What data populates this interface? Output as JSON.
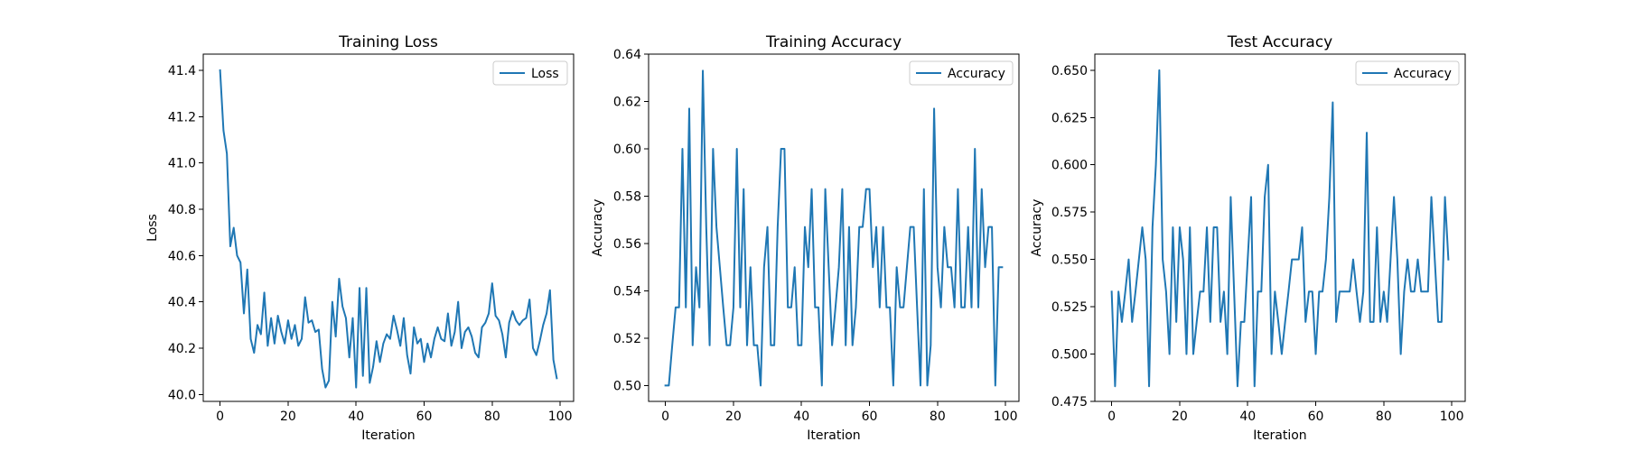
{
  "chart_data": [
    {
      "type": "line",
      "title": "Training Loss",
      "xlabel": "Iteration",
      "ylabel": "Loss",
      "xlim": [
        -4.95,
        103.95
      ],
      "ylim": [
        39.97,
        41.47
      ],
      "xticks": [
        0,
        20,
        40,
        60,
        80,
        100
      ],
      "yticks": [
        40.0,
        40.2,
        40.4,
        40.6,
        40.8,
        41.0,
        41.2,
        41.4
      ],
      "ytick_labels": [
        "40.0",
        "40.2",
        "40.4",
        "40.6",
        "40.8",
        "41.0",
        "41.2",
        "41.4"
      ],
      "grid": false,
      "legend": "top-right",
      "series": [
        {
          "name": "Loss",
          "color": "#1f77b4",
          "x": [
            0,
            1,
            2,
            3,
            4,
            5,
            6,
            7,
            8,
            9,
            10,
            11,
            12,
            13,
            14,
            15,
            16,
            17,
            18,
            19,
            20,
            21,
            22,
            23,
            24,
            25,
            26,
            27,
            28,
            29,
            30,
            31,
            32,
            33,
            34,
            35,
            36,
            37,
            38,
            39,
            40,
            41,
            42,
            43,
            44,
            45,
            46,
            47,
            48,
            49,
            50,
            51,
            52,
            53,
            54,
            55,
            56,
            57,
            58,
            59,
            60,
            61,
            62,
            63,
            64,
            65,
            66,
            67,
            68,
            69,
            70,
            71,
            72,
            73,
            74,
            75,
            76,
            77,
            78,
            79,
            80,
            81,
            82,
            83,
            84,
            85,
            86,
            87,
            88,
            89,
            90,
            91,
            92,
            93,
            94,
            95,
            96,
            97,
            98,
            99
          ],
          "values": [
            41.4,
            41.14,
            41.04,
            40.64,
            40.72,
            40.6,
            40.57,
            40.35,
            40.54,
            40.24,
            40.18,
            40.3,
            40.26,
            40.44,
            40.21,
            40.33,
            40.22,
            40.34,
            40.27,
            40.22,
            40.32,
            40.24,
            40.3,
            40.21,
            40.24,
            40.42,
            40.31,
            40.32,
            40.27,
            40.28,
            40.11,
            40.03,
            40.06,
            40.4,
            40.25,
            40.5,
            40.38,
            40.33,
            40.16,
            40.33,
            40.03,
            40.46,
            40.08,
            40.46,
            40.05,
            40.12,
            40.23,
            40.14,
            40.22,
            40.26,
            40.24,
            40.34,
            40.28,
            40.21,
            40.33,
            40.17,
            40.09,
            40.29,
            40.22,
            40.24,
            40.14,
            40.22,
            40.16,
            40.24,
            40.29,
            40.24,
            40.23,
            40.35,
            40.21,
            40.27,
            40.4,
            40.2,
            40.27,
            40.29,
            40.25,
            40.18,
            40.16,
            40.29,
            40.31,
            40.35,
            40.48,
            40.34,
            40.32,
            40.26,
            40.16,
            40.31,
            40.36,
            40.32,
            40.3,
            40.32,
            40.33,
            40.41,
            40.2,
            40.17,
            40.23,
            40.3,
            40.35,
            40.45,
            40.15,
            40.07
          ]
        }
      ]
    },
    {
      "type": "line",
      "title": "Training Accuracy",
      "xlabel": "Iteration",
      "ylabel": "Accuracy",
      "xlim": [
        -4.95,
        103.95
      ],
      "ylim": [
        0.4933,
        0.64
      ],
      "xticks": [
        0,
        20,
        40,
        60,
        80,
        100
      ],
      "yticks": [
        0.5,
        0.52,
        0.54,
        0.56,
        0.58,
        0.6,
        0.62,
        0.64
      ],
      "ytick_labels": [
        "0.50",
        "0.52",
        "0.54",
        "0.56",
        "0.58",
        "0.60",
        "0.62",
        "0.64"
      ],
      "grid": false,
      "legend": "top-right",
      "series": [
        {
          "name": "Accuracy",
          "color": "#1f77b4",
          "x": [
            0,
            1,
            2,
            3,
            4,
            5,
            6,
            7,
            8,
            9,
            10,
            11,
            12,
            13,
            14,
            15,
            16,
            17,
            18,
            19,
            20,
            21,
            22,
            23,
            24,
            25,
            26,
            27,
            28,
            29,
            30,
            31,
            32,
            33,
            34,
            35,
            36,
            37,
            38,
            39,
            40,
            41,
            42,
            43,
            44,
            45,
            46,
            47,
            48,
            49,
            50,
            51,
            52,
            53,
            54,
            55,
            56,
            57,
            58,
            59,
            60,
            61,
            62,
            63,
            64,
            65,
            66,
            67,
            68,
            69,
            70,
            71,
            72,
            73,
            74,
            75,
            76,
            77,
            78,
            79,
            80,
            81,
            82,
            83,
            84,
            85,
            86,
            87,
            88,
            89,
            90,
            91,
            92,
            93,
            94,
            95,
            96,
            97,
            98,
            99
          ],
          "values": [
            0.5,
            0.5,
            0.517,
            0.533,
            0.533,
            0.6,
            0.533,
            0.617,
            0.517,
            0.55,
            0.533,
            0.633,
            0.567,
            0.517,
            0.6,
            0.567,
            0.55,
            0.533,
            0.517,
            0.517,
            0.533,
            0.6,
            0.533,
            0.583,
            0.517,
            0.55,
            0.517,
            0.517,
            0.5,
            0.55,
            0.567,
            0.517,
            0.517,
            0.567,
            0.6,
            0.6,
            0.533,
            0.533,
            0.55,
            0.517,
            0.517,
            0.567,
            0.55,
            0.583,
            0.533,
            0.533,
            0.5,
            0.583,
            0.55,
            0.517,
            0.533,
            0.55,
            0.583,
            0.517,
            0.567,
            0.517,
            0.533,
            0.567,
            0.567,
            0.583,
            0.583,
            0.55,
            0.567,
            0.533,
            0.567,
            0.533,
            0.533,
            0.5,
            0.55,
            0.533,
            0.533,
            0.55,
            0.567,
            0.567,
            0.533,
            0.5,
            0.583,
            0.5,
            0.517,
            0.617,
            0.55,
            0.533,
            0.567,
            0.55,
            0.55,
            0.533,
            0.583,
            0.533,
            0.533,
            0.567,
            0.533,
            0.6,
            0.533,
            0.583,
            0.55,
            0.567,
            0.567,
            0.5,
            0.55,
            0.55
          ]
        }
      ]
    },
    {
      "type": "line",
      "title": "Test Accuracy",
      "xlabel": "Iteration",
      "ylabel": "Accuracy",
      "xlim": [
        -4.95,
        103.95
      ],
      "ylim": [
        0.475,
        0.6585
      ],
      "xticks": [
        0,
        20,
        40,
        60,
        80,
        100
      ],
      "yticks": [
        0.475,
        0.5,
        0.525,
        0.55,
        0.575,
        0.6,
        0.625,
        0.65
      ],
      "ytick_labels": [
        "0.475",
        "0.500",
        "0.525",
        "0.550",
        "0.575",
        "0.600",
        "0.625",
        "0.650"
      ],
      "grid": false,
      "legend": "top-right",
      "series": [
        {
          "name": "Accuracy",
          "color": "#1f77b4",
          "x": [
            0,
            1,
            2,
            3,
            4,
            5,
            6,
            7,
            8,
            9,
            10,
            11,
            12,
            13,
            14,
            15,
            16,
            17,
            18,
            19,
            20,
            21,
            22,
            23,
            24,
            25,
            26,
            27,
            28,
            29,
            30,
            31,
            32,
            33,
            34,
            35,
            36,
            37,
            38,
            39,
            40,
            41,
            42,
            43,
            44,
            45,
            46,
            47,
            48,
            49,
            50,
            51,
            52,
            53,
            54,
            55,
            56,
            57,
            58,
            59,
            60,
            61,
            62,
            63,
            64,
            65,
            66,
            67,
            68,
            69,
            70,
            71,
            72,
            73,
            74,
            75,
            76,
            77,
            78,
            79,
            80,
            81,
            82,
            83,
            84,
            85,
            86,
            87,
            88,
            89,
            90,
            91,
            92,
            93,
            94,
            95,
            96,
            97,
            98,
            99
          ],
          "values": [
            0.533,
            0.483,
            0.533,
            0.517,
            0.533,
            0.55,
            0.517,
            0.533,
            0.55,
            0.567,
            0.55,
            0.483,
            0.567,
            0.6,
            0.65,
            0.55,
            0.533,
            0.5,
            0.567,
            0.517,
            0.567,
            0.55,
            0.5,
            0.567,
            0.5,
            0.517,
            0.533,
            0.533,
            0.567,
            0.517,
            0.567,
            0.567,
            0.517,
            0.533,
            0.5,
            0.583,
            0.533,
            0.483,
            0.517,
            0.517,
            0.55,
            0.583,
            0.483,
            0.533,
            0.533,
            0.583,
            0.6,
            0.5,
            0.533,
            0.517,
            0.5,
            0.517,
            0.533,
            0.55,
            0.55,
            0.55,
            0.567,
            0.517,
            0.533,
            0.533,
            0.5,
            0.533,
            0.533,
            0.55,
            0.583,
            0.633,
            0.517,
            0.533,
            0.533,
            0.533,
            0.533,
            0.55,
            0.533,
            0.517,
            0.533,
            0.617,
            0.517,
            0.517,
            0.567,
            0.517,
            0.533,
            0.517,
            0.55,
            0.583,
            0.55,
            0.5,
            0.533,
            0.55,
            0.533,
            0.533,
            0.55,
            0.533,
            0.533,
            0.533,
            0.583,
            0.55,
            0.517,
            0.517,
            0.583,
            0.55
          ]
        }
      ]
    }
  ]
}
